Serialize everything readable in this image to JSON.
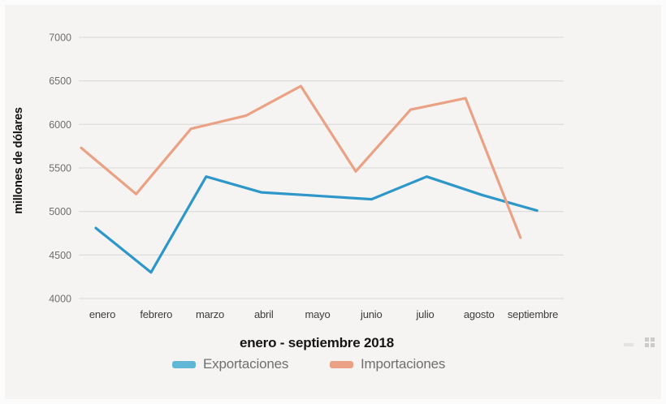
{
  "chart_data": {
    "type": "line",
    "title": "enero - septiembre 2018",
    "ylabel": "millones de dólares",
    "categories": [
      "enero",
      "febrero",
      "marzo",
      "abril",
      "mayo",
      "junio",
      "julio",
      "agosto",
      "septiembre"
    ],
    "series": [
      {
        "name": "Exportaciones",
        "color": "#2e97c9",
        "swatch_color": "#5fb6d6",
        "values": [
          4810,
          4300,
          5400,
          5220,
          5180,
          5140,
          5400,
          5190,
          5010
        ]
      },
      {
        "name": "Importaciones",
        "color": "#eba183",
        "swatch_color": "#eba183",
        "values": [
          5730,
          5200,
          5950,
          6100,
          6440,
          5460,
          6170,
          6300,
          4700
        ]
      }
    ],
    "yticks": [
      4000,
      4500,
      5000,
      5500,
      6000,
      6500,
      7000
    ],
    "ylim": [
      4000,
      7000
    ],
    "grid": true,
    "legend_position": "bottom",
    "axis_colors": {
      "gridline": "#dedede",
      "y_tick_text": "#6e6e6e",
      "x_tick_text": "#3c3c3c"
    }
  }
}
